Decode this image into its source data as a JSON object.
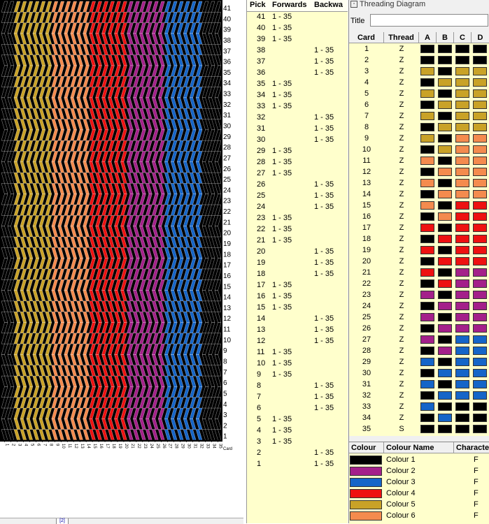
{
  "pick_table": {
    "headers": [
      "Pick",
      "Forwards",
      "Backwa"
    ],
    "rows": [
      {
        "pick": "41",
        "forwards": "1 - 35",
        "backwards": ""
      },
      {
        "pick": "40",
        "forwards": "1 - 35",
        "backwards": ""
      },
      {
        "pick": "39",
        "forwards": "1 - 35",
        "backwards": ""
      },
      {
        "pick": "38",
        "forwards": "",
        "backwards": "1 - 35"
      },
      {
        "pick": "37",
        "forwards": "",
        "backwards": "1 - 35"
      },
      {
        "pick": "36",
        "forwards": "",
        "backwards": "1 - 35"
      },
      {
        "pick": "35",
        "forwards": "1 - 35",
        "backwards": ""
      },
      {
        "pick": "34",
        "forwards": "1 - 35",
        "backwards": ""
      },
      {
        "pick": "33",
        "forwards": "1 - 35",
        "backwards": ""
      },
      {
        "pick": "32",
        "forwards": "",
        "backwards": "1 - 35"
      },
      {
        "pick": "31",
        "forwards": "",
        "backwards": "1 - 35"
      },
      {
        "pick": "30",
        "forwards": "",
        "backwards": "1 - 35"
      },
      {
        "pick": "29",
        "forwards": "1 - 35",
        "backwards": ""
      },
      {
        "pick": "28",
        "forwards": "1 - 35",
        "backwards": ""
      },
      {
        "pick": "27",
        "forwards": "1 - 35",
        "backwards": ""
      },
      {
        "pick": "26",
        "forwards": "",
        "backwards": "1 - 35"
      },
      {
        "pick": "25",
        "forwards": "",
        "backwards": "1 - 35"
      },
      {
        "pick": "24",
        "forwards": "",
        "backwards": "1 - 35"
      },
      {
        "pick": "23",
        "forwards": "1 - 35",
        "backwards": ""
      },
      {
        "pick": "22",
        "forwards": "1 - 35",
        "backwards": ""
      },
      {
        "pick": "21",
        "forwards": "1 - 35",
        "backwards": ""
      },
      {
        "pick": "20",
        "forwards": "",
        "backwards": "1 - 35"
      },
      {
        "pick": "19",
        "forwards": "",
        "backwards": "1 - 35"
      },
      {
        "pick": "18",
        "forwards": "",
        "backwards": "1 - 35"
      },
      {
        "pick": "17",
        "forwards": "1 - 35",
        "backwards": ""
      },
      {
        "pick": "16",
        "forwards": "1 - 35",
        "backwards": ""
      },
      {
        "pick": "15",
        "forwards": "1 - 35",
        "backwards": ""
      },
      {
        "pick": "14",
        "forwards": "",
        "backwards": "1 - 35"
      },
      {
        "pick": "13",
        "forwards": "",
        "backwards": "1 - 35"
      },
      {
        "pick": "12",
        "forwards": "",
        "backwards": "1 - 35"
      },
      {
        "pick": "11",
        "forwards": "1 - 35",
        "backwards": ""
      },
      {
        "pick": "10",
        "forwards": "1 - 35",
        "backwards": ""
      },
      {
        "pick": "9",
        "forwards": "1 - 35",
        "backwards": ""
      },
      {
        "pick": "8",
        "forwards": "",
        "backwards": "1 - 35"
      },
      {
        "pick": "7",
        "forwards": "",
        "backwards": "1 - 35"
      },
      {
        "pick": "6",
        "forwards": "",
        "backwards": "1 - 35"
      },
      {
        "pick": "5",
        "forwards": "1 - 35",
        "backwards": ""
      },
      {
        "pick": "4",
        "forwards": "1 - 35",
        "backwards": ""
      },
      {
        "pick": "3",
        "forwards": "1 - 35",
        "backwards": ""
      },
      {
        "pick": "2",
        "forwards": "",
        "backwards": "1 - 35"
      },
      {
        "pick": "1",
        "forwards": "",
        "backwards": "1 - 35"
      }
    ]
  },
  "pattern": {
    "card_axis_label": "Card",
    "pick_labels": [
      "41",
      "40",
      "39",
      "38",
      "37",
      "36",
      "35",
      "34",
      "33",
      "32",
      "31",
      "30",
      "29",
      "28",
      "27",
      "26",
      "25",
      "24",
      "23",
      "22",
      "21",
      "20",
      "19",
      "18",
      "17",
      "16",
      "15",
      "14",
      "13",
      "12",
      "11",
      "10",
      "9",
      "8",
      "7",
      "6",
      "5",
      "4",
      "3",
      "2",
      "1"
    ],
    "card_labels": [
      "1",
      "2",
      "3",
      "4",
      "5",
      "6",
      "7",
      "8",
      "9",
      "10",
      "11",
      "12",
      "13",
      "14",
      "15",
      "16",
      "17",
      "18",
      "19",
      "20",
      "21",
      "22",
      "23",
      "24",
      "25",
      "26",
      "27",
      "28",
      "29",
      "30",
      "31",
      "32",
      "33",
      "34",
      "35"
    ],
    "card_colors": [
      "#000000",
      "#000000",
      "#c9a227",
      "#c9a227",
      "#c9a227",
      "#c9a227",
      "#c9a227",
      "#c9a227",
      "#f48b4e",
      "#f48b4e",
      "#f48b4e",
      "#f48b4e",
      "#f48b4e",
      "#f48b4e",
      "#ee1111",
      "#ee1111",
      "#ee1111",
      "#ee1111",
      "#ee1111",
      "#ee1111",
      "#a4208a",
      "#a4208a",
      "#a4208a",
      "#a4208a",
      "#a4208a",
      "#a4208a",
      "#1565c8",
      "#1565c8",
      "#1565c8",
      "#1565c8",
      "#1565c8",
      "#1565c8",
      "#000000",
      "#000000",
      "#000000"
    ]
  },
  "threading": {
    "window_title": "Threading Diagram",
    "title_label": "Title",
    "title_value": "",
    "headers": [
      "Card",
      "Thread",
      "A",
      "B",
      "C",
      "D"
    ],
    "cards": [
      {
        "card": "1",
        "thread": "Z",
        "holes": [
          1,
          1,
          1,
          1
        ]
      },
      {
        "card": "2",
        "thread": "Z",
        "holes": [
          1,
          1,
          1,
          1
        ]
      },
      {
        "card": "3",
        "thread": "Z",
        "holes": [
          5,
          1,
          5,
          5
        ]
      },
      {
        "card": "4",
        "thread": "Z",
        "holes": [
          1,
          5,
          5,
          5
        ]
      },
      {
        "card": "5",
        "thread": "Z",
        "holes": [
          5,
          1,
          5,
          5
        ]
      },
      {
        "card": "6",
        "thread": "Z",
        "holes": [
          1,
          5,
          5,
          5
        ]
      },
      {
        "card": "7",
        "thread": "Z",
        "holes": [
          5,
          1,
          5,
          5
        ]
      },
      {
        "card": "8",
        "thread": "Z",
        "holes": [
          1,
          5,
          5,
          5
        ]
      },
      {
        "card": "9",
        "thread": "Z",
        "holes": [
          5,
          1,
          6,
          6
        ]
      },
      {
        "card": "10",
        "thread": "Z",
        "holes": [
          1,
          5,
          6,
          6
        ]
      },
      {
        "card": "11",
        "thread": "Z",
        "holes": [
          6,
          1,
          6,
          6
        ]
      },
      {
        "card": "12",
        "thread": "Z",
        "holes": [
          1,
          6,
          6,
          6
        ]
      },
      {
        "card": "13",
        "thread": "Z",
        "holes": [
          6,
          1,
          6,
          6
        ]
      },
      {
        "card": "14",
        "thread": "Z",
        "holes": [
          1,
          6,
          6,
          6
        ]
      },
      {
        "card": "15",
        "thread": "Z",
        "holes": [
          6,
          1,
          4,
          4
        ]
      },
      {
        "card": "16",
        "thread": "Z",
        "holes": [
          1,
          6,
          4,
          4
        ]
      },
      {
        "card": "17",
        "thread": "Z",
        "holes": [
          4,
          1,
          4,
          4
        ]
      },
      {
        "card": "18",
        "thread": "Z",
        "holes": [
          1,
          4,
          4,
          4
        ]
      },
      {
        "card": "19",
        "thread": "Z",
        "holes": [
          4,
          1,
          4,
          4
        ]
      },
      {
        "card": "20",
        "thread": "Z",
        "holes": [
          1,
          4,
          4,
          4
        ]
      },
      {
        "card": "21",
        "thread": "Z",
        "holes": [
          4,
          1,
          2,
          2
        ]
      },
      {
        "card": "22",
        "thread": "Z",
        "holes": [
          1,
          4,
          2,
          2
        ]
      },
      {
        "card": "23",
        "thread": "Z",
        "holes": [
          2,
          1,
          2,
          2
        ]
      },
      {
        "card": "24",
        "thread": "Z",
        "holes": [
          1,
          2,
          2,
          2
        ]
      },
      {
        "card": "25",
        "thread": "Z",
        "holes": [
          2,
          1,
          2,
          2
        ]
      },
      {
        "card": "26",
        "thread": "Z",
        "holes": [
          1,
          2,
          2,
          2
        ]
      },
      {
        "card": "27",
        "thread": "Z",
        "holes": [
          2,
          1,
          3,
          3
        ]
      },
      {
        "card": "28",
        "thread": "Z",
        "holes": [
          1,
          2,
          3,
          3
        ]
      },
      {
        "card": "29",
        "thread": "Z",
        "holes": [
          3,
          1,
          3,
          3
        ]
      },
      {
        "card": "30",
        "thread": "Z",
        "holes": [
          1,
          3,
          3,
          3
        ]
      },
      {
        "card": "31",
        "thread": "Z",
        "holes": [
          3,
          1,
          3,
          3
        ]
      },
      {
        "card": "32",
        "thread": "Z",
        "holes": [
          1,
          3,
          3,
          3
        ]
      },
      {
        "card": "33",
        "thread": "Z",
        "holes": [
          3,
          1,
          1,
          1
        ]
      },
      {
        "card": "34",
        "thread": "Z",
        "holes": [
          1,
          3,
          1,
          1
        ]
      },
      {
        "card": "35",
        "thread": "S",
        "holes": [
          1,
          1,
          1,
          1
        ]
      }
    ]
  },
  "colours": {
    "headers": [
      "Colour",
      "Colour Name",
      "Characte"
    ],
    "items": [
      {
        "name": "Colour 1",
        "hex": "#000000",
        "char": "F"
      },
      {
        "name": "Colour 2",
        "hex": "#a4208a",
        "char": "F"
      },
      {
        "name": "Colour 3",
        "hex": "#1565c8",
        "char": "F"
      },
      {
        "name": "Colour 4",
        "hex": "#ee1111",
        "char": "F"
      },
      {
        "name": "Colour 5",
        "hex": "#c9a227",
        "char": "F"
      },
      {
        "name": "Colour 6",
        "hex": "#f48b4e",
        "char": "F"
      }
    ]
  },
  "status": {
    "tab_label": "[2]"
  }
}
